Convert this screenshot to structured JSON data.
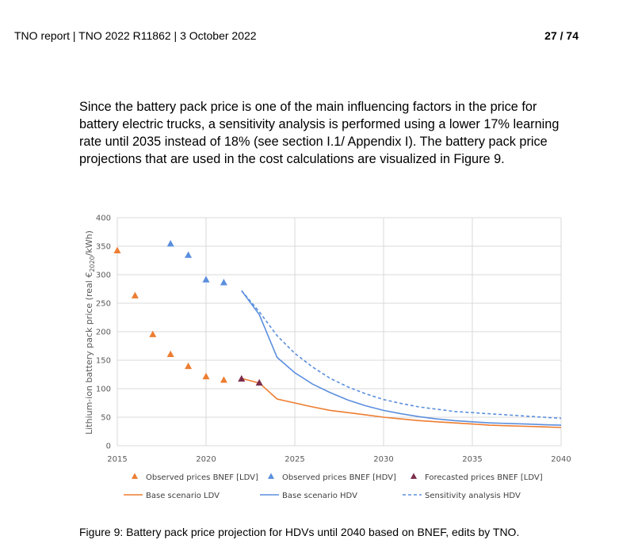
{
  "header": {
    "left": "TNO report | TNO 2022 R11862 | 3 October 2022",
    "right": "27 / 74"
  },
  "body_paragraph": "Since the battery pack price is one of the main influencing factors in the price for battery electric trucks, a sensitivity analysis is performed using a lower 17% learning rate until 2035 instead of 18% (see section I.1/ Appendix I). The battery pack price projections that are used in the cost calculations are visualized in Figure 9.",
  "caption": "Figure 9: Battery pack price projection for HDVs until 2040 based on BNEF, edits by TNO.",
  "colors": {
    "ldv": "#ED7D31",
    "hdv": "#5B8FDE",
    "forecast": "#7B2D4A",
    "grid": "#D9D9D9"
  },
  "chart_data": {
    "type": "line",
    "title": "",
    "xlabel": "",
    "ylabel_parts": [
      "Lithium-ion battery pack price (real €",
      "2020",
      "/kWh)"
    ],
    "xlim": [
      2015,
      2040
    ],
    "ylim": [
      0,
      400
    ],
    "x_ticks": [
      2015,
      2020,
      2025,
      2030,
      2035,
      2040
    ],
    "y_ticks": [
      0,
      50,
      100,
      150,
      200,
      250,
      300,
      350,
      400
    ],
    "grid": true,
    "legend_position": "bottom",
    "series": [
      {
        "name": "Observed prices BNEF [LDV]",
        "kind": "markers",
        "marker": "triangle",
        "color": "#ED7D31",
        "points": [
          [
            2015,
            342
          ],
          [
            2016,
            263
          ],
          [
            2017,
            195
          ],
          [
            2018,
            160
          ],
          [
            2019,
            139
          ],
          [
            2020,
            121
          ],
          [
            2021,
            115
          ]
        ]
      },
      {
        "name": "Observed prices BNEF [HDV]",
        "kind": "markers",
        "marker": "triangle",
        "color": "#5B8FDE",
        "points": [
          [
            2018,
            354
          ],
          [
            2019,
            334
          ],
          [
            2020,
            291
          ],
          [
            2021,
            286
          ]
        ]
      },
      {
        "name": "Forecasted prices BNEF [LDV]",
        "kind": "markers",
        "marker": "triangle",
        "color": "#7B2D4A",
        "points": [
          [
            2022,
            117
          ],
          [
            2023,
            110
          ]
        ]
      },
      {
        "name": "Base scenario LDV",
        "kind": "line",
        "dash": false,
        "color": "#ED7D31",
        "points": [
          [
            2022,
            118
          ],
          [
            2023,
            110
          ],
          [
            2024,
            82
          ],
          [
            2025,
            75
          ],
          [
            2026,
            68
          ],
          [
            2027,
            62
          ],
          [
            2028,
            58
          ],
          [
            2029,
            54
          ],
          [
            2030,
            50
          ],
          [
            2031,
            47
          ],
          [
            2032,
            44
          ],
          [
            2033,
            42
          ],
          [
            2034,
            40
          ],
          [
            2035,
            38
          ],
          [
            2036,
            36
          ],
          [
            2037,
            35
          ],
          [
            2038,
            34
          ],
          [
            2039,
            33
          ],
          [
            2040,
            32
          ]
        ]
      },
      {
        "name": "Base scenario HDV",
        "kind": "line",
        "dash": false,
        "color": "#5B8FDE",
        "points": [
          [
            2022,
            272
          ],
          [
            2023,
            230
          ],
          [
            2024,
            155
          ],
          [
            2025,
            128
          ],
          [
            2026,
            108
          ],
          [
            2027,
            93
          ],
          [
            2028,
            80
          ],
          [
            2029,
            70
          ],
          [
            2030,
            62
          ],
          [
            2031,
            56
          ],
          [
            2032,
            51
          ],
          [
            2033,
            47
          ],
          [
            2034,
            44
          ],
          [
            2035,
            42
          ],
          [
            2036,
            40
          ],
          [
            2037,
            39
          ],
          [
            2038,
            38
          ],
          [
            2039,
            37
          ],
          [
            2040,
            36
          ]
        ]
      },
      {
        "name": "Sensitivity analysis HDV",
        "kind": "line",
        "dash": true,
        "color": "#5B8FDE",
        "points": [
          [
            2022,
            272
          ],
          [
            2023,
            235
          ],
          [
            2024,
            193
          ],
          [
            2025,
            162
          ],
          [
            2026,
            138
          ],
          [
            2027,
            118
          ],
          [
            2028,
            103
          ],
          [
            2029,
            91
          ],
          [
            2030,
            81
          ],
          [
            2031,
            74
          ],
          [
            2032,
            68
          ],
          [
            2033,
            64
          ],
          [
            2034,
            60
          ],
          [
            2035,
            58
          ],
          [
            2036,
            56
          ],
          [
            2037,
            54
          ],
          [
            2038,
            52
          ],
          [
            2039,
            50
          ],
          [
            2040,
            48
          ]
        ]
      }
    ]
  }
}
